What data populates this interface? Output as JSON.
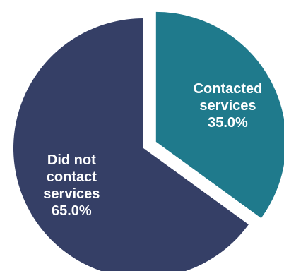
{
  "chart_data": {
    "type": "pie",
    "title": "",
    "categories": [
      "Contacted services",
      "Did not contact services"
    ],
    "values": [
      35.0,
      65.0
    ],
    "unit": "%",
    "slice_labels": [
      {
        "lines": [
          "Contacted",
          "services",
          "35.0%"
        ]
      },
      {
        "lines": [
          "Did not",
          "contact",
          "services",
          "65.0%"
        ]
      }
    ],
    "colors": [
      "#1f7a8c",
      "#353f66"
    ],
    "exploded_slice": "Contacted services",
    "legend": "none"
  }
}
